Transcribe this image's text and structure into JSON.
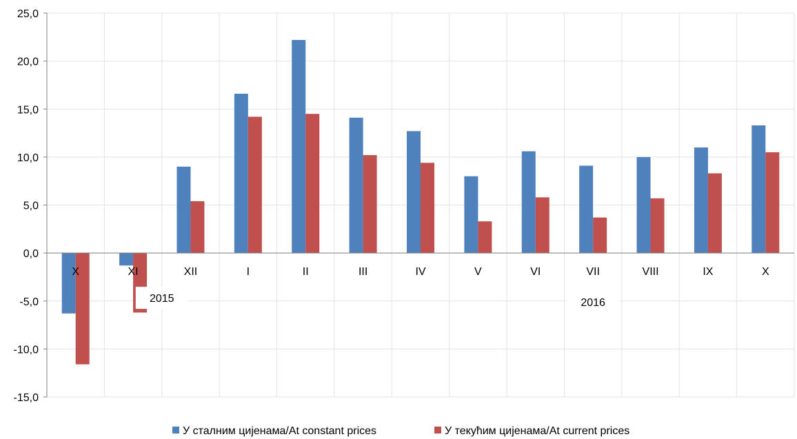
{
  "chart_data": {
    "type": "bar",
    "title": "",
    "xlabel": "",
    "ylabel": "",
    "categories": [
      "X",
      "XI",
      "XII",
      "I",
      "II",
      "III",
      "IV",
      "V",
      "VI",
      "VII",
      "VIII",
      "IX",
      "X"
    ],
    "series": [
      {
        "name": "У сталним цијенама/At constant prices",
        "color": "#4F81BD",
        "values": [
          -6.3,
          -1.3,
          9.0,
          16.6,
          22.2,
          14.1,
          12.7,
          8.0,
          10.6,
          9.1,
          10.0,
          11.0,
          13.3
        ]
      },
      {
        "name": "У текућим цијенама/At current prices",
        "color": "#C0504D",
        "values": [
          -11.6,
          -6.2,
          5.4,
          14.2,
          14.5,
          10.2,
          9.4,
          3.3,
          5.8,
          3.7,
          5.7,
          8.3,
          10.5
        ]
      }
    ],
    "ylim": [
      -15,
      25
    ],
    "yticks": [
      "-15,0",
      "-10,0",
      "-5,0",
      "0,0",
      "5,0",
      "10,0",
      "15,0",
      "20,0",
      "25,0"
    ],
    "year_labels": [
      {
        "label": "2015",
        "category_position": 2
      },
      {
        "label": "2016",
        "category_position": 9.5
      }
    ],
    "grid": true,
    "legend": "bottom"
  }
}
